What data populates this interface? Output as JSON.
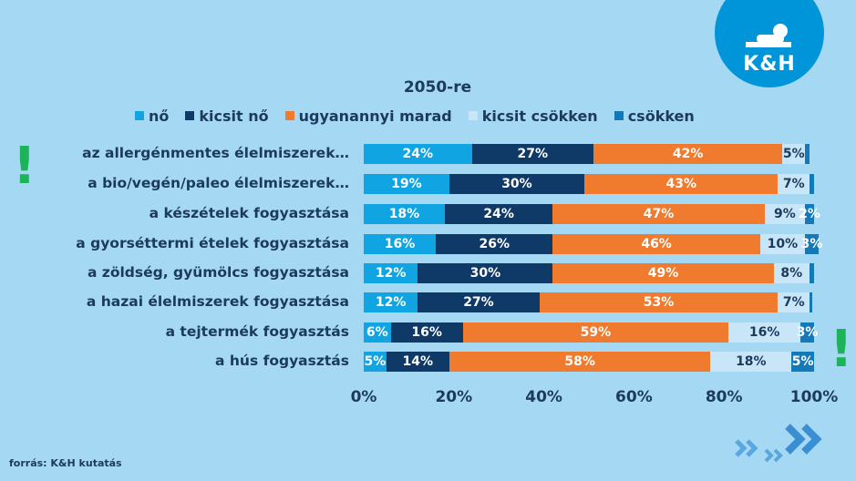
{
  "brand": {
    "logo_text": "K&H"
  },
  "source": "forrás: K&H kutatás",
  "chart_data": {
    "type": "bar",
    "orientation": "horizontal",
    "stacked": true,
    "title": "2050-re",
    "categories": [
      "az allergénmentes élelmiszerek…",
      "a bio/vegén/paleo élelmiszerek…",
      "a készételek fogyasztása",
      "a gyorséttermi ételek fogyasztása",
      "a zöldség, gyümölcs fogyasztása",
      "a hazai élelmiszerek fogyasztása",
      "a tejtermék fogyasztás",
      "a hús fogyasztás"
    ],
    "series": [
      {
        "name": "nő",
        "color": "#10a5e2",
        "text_color": "#ffffff",
        "values": [
          24,
          19,
          18,
          16,
          12,
          12,
          6,
          5
        ],
        "labels": [
          "24%",
          "19%",
          "18%",
          "16%",
          "12%",
          "12%",
          "6%",
          "5%"
        ]
      },
      {
        "name": "kicsit nő",
        "color": "#0f3a68",
        "text_color": "#ffffff",
        "values": [
          27,
          30,
          24,
          26,
          30,
          27,
          16,
          14
        ],
        "labels": [
          "27%",
          "30%",
          "24%",
          "26%",
          "30%",
          "27%",
          "16%",
          "14%"
        ]
      },
      {
        "name": "ugyanannyi marad",
        "color": "#f07a2d",
        "text_color": "#ffffff",
        "values": [
          42,
          43,
          47,
          46,
          49,
          53,
          59,
          58
        ],
        "labels": [
          "42%",
          "43%",
          "47%",
          "46%",
          "49%",
          "53%",
          "59%",
          "58%"
        ]
      },
      {
        "name": "kicsit csökken",
        "color": "#c9e6f8",
        "text_color": "#1b3a5c",
        "values": [
          5,
          7,
          9,
          10,
          8,
          7,
          16,
          18
        ],
        "labels": [
          "5%",
          "7%",
          "9%",
          "10%",
          "8%",
          "7%",
          "16%",
          "18%"
        ]
      },
      {
        "name": "csökken",
        "color": "#1479b8",
        "text_color": "#ffffff",
        "values": [
          1,
          1,
          2,
          3,
          1,
          0.5,
          3,
          5
        ],
        "labels": [
          "",
          "",
          "2%",
          "3%",
          "",
          "",
          "3%",
          "5%"
        ]
      }
    ],
    "xlim": [
      0,
      100
    ],
    "x_ticks": [
      "0%",
      "20%",
      "40%",
      "60%",
      "80%",
      "100%"
    ],
    "grid": false,
    "legend": "top",
    "annotations": [
      "!",
      "!"
    ]
  }
}
